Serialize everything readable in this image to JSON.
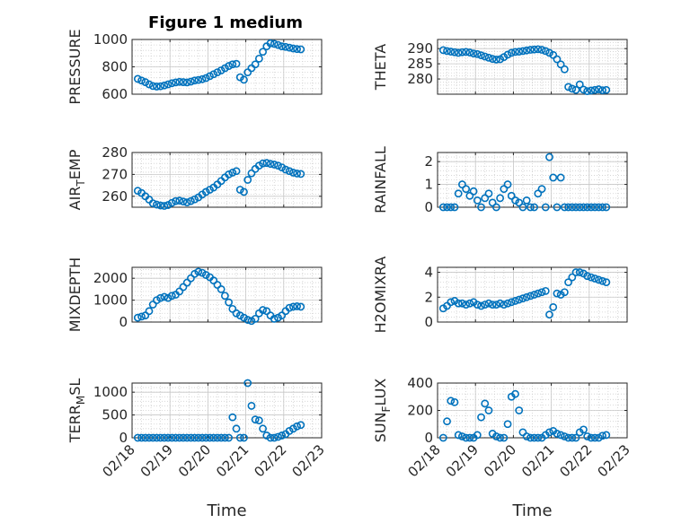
{
  "figure": {
    "title": "Figure 1 medium"
  },
  "chart_data": [
    {
      "type": "scatter",
      "ylabel": "PRESSURE",
      "title": "Figure 1 medium",
      "xlim": [
        "02/18",
        "02/23"
      ],
      "ylim": [
        600,
        1000
      ],
      "yticks": [
        600,
        800,
        1000
      ],
      "xticks": [
        "02/18",
        "02/19",
        "02/20",
        "02/21",
        "02/22",
        "02/23"
      ],
      "grid": true,
      "series": [
        {
          "x": [
            18.15,
            18.25,
            18.35,
            18.45,
            18.55,
            18.65,
            18.75,
            18.85,
            18.95,
            19.05,
            19.15,
            19.25,
            19.35,
            19.45,
            19.55,
            19.65,
            19.75,
            19.85,
            19.95,
            20.05,
            20.15,
            20.25,
            20.35,
            20.45,
            20.55,
            20.65,
            20.75,
            20.85,
            20.95,
            21.05,
            21.15,
            21.25,
            21.35,
            21.45,
            21.55,
            21.65,
            21.75,
            21.85,
            21.95,
            22.05,
            22.15,
            22.25,
            22.35,
            22.45
          ],
          "y": [
            712,
            700,
            688,
            672,
            660,
            656,
            658,
            664,
            672,
            680,
            686,
            690,
            688,
            686,
            692,
            700,
            704,
            710,
            718,
            732,
            746,
            760,
            774,
            790,
            806,
            818,
            822,
            724,
            706,
            760,
            790,
            818,
            860,
            910,
            950,
            972,
            968,
            960,
            950,
            946,
            940,
            934,
            930,
            928
          ]
        }
      ]
    },
    {
      "type": "scatter",
      "ylabel": "THETA",
      "xlim": [
        "02/18",
        "02/23"
      ],
      "ylim": [
        275,
        293
      ],
      "yticks": [
        280,
        285,
        290
      ],
      "xticks": [
        "02/18",
        "02/19",
        "02/20",
        "02/21",
        "02/22",
        "02/23"
      ],
      "grid": true,
      "series": [
        {
          "x": [
            18.15,
            18.25,
            18.35,
            18.45,
            18.55,
            18.65,
            18.75,
            18.85,
            18.95,
            19.05,
            19.15,
            19.25,
            19.35,
            19.45,
            19.55,
            19.65,
            19.75,
            19.85,
            19.95,
            20.05,
            20.15,
            20.25,
            20.35,
            20.45,
            20.55,
            20.65,
            20.75,
            20.85,
            20.95,
            21.05,
            21.15,
            21.25,
            21.35,
            21.45,
            21.55,
            21.65,
            21.75,
            21.85,
            21.95,
            22.05,
            22.15,
            22.25,
            22.35,
            22.45
          ],
          "y": [
            289.5,
            289.2,
            289.0,
            288.8,
            288.6,
            288.8,
            288.9,
            288.7,
            288.4,
            288.2,
            287.8,
            287.4,
            287.0,
            286.6,
            286.4,
            286.5,
            287.2,
            288.0,
            288.6,
            288.9,
            289.0,
            289.2,
            289.4,
            289.6,
            289.7,
            289.8,
            289.6,
            289.2,
            288.6,
            287.9,
            286.5,
            284.8,
            283.2,
            277.4,
            276.8,
            276.4,
            278.2,
            276.5,
            276.0,
            276.2,
            276.4,
            276.6,
            276.3,
            276.4
          ]
        }
      ]
    },
    {
      "type": "scatter",
      "ylabel": "AIR_TEMP",
      "xlim": [
        "02/18",
        "02/23"
      ],
      "ylim": [
        255,
        280
      ],
      "yticks": [
        260,
        270,
        280
      ],
      "xticks": [
        "02/18",
        "02/19",
        "02/20",
        "02/21",
        "02/22",
        "02/23"
      ],
      "grid": true,
      "series": [
        {
          "x": [
            18.15,
            18.25,
            18.35,
            18.45,
            18.55,
            18.65,
            18.75,
            18.85,
            18.95,
            19.05,
            19.15,
            19.25,
            19.35,
            19.45,
            19.55,
            19.65,
            19.75,
            19.85,
            19.95,
            20.05,
            20.15,
            20.25,
            20.35,
            20.45,
            20.55,
            20.65,
            20.75,
            20.85,
            20.95,
            21.05,
            21.15,
            21.25,
            21.35,
            21.45,
            21.55,
            21.65,
            21.75,
            21.85,
            21.95,
            22.05,
            22.15,
            22.25,
            22.35,
            22.45
          ],
          "y": [
            262.5,
            261.5,
            260.0,
            258.5,
            256.8,
            256.2,
            255.8,
            255.6,
            256.0,
            257.0,
            257.8,
            258.0,
            257.6,
            257.2,
            257.8,
            258.6,
            259.5,
            260.8,
            262.0,
            263.0,
            264.0,
            265.4,
            267.0,
            268.6,
            270.0,
            270.8,
            271.5,
            263.0,
            262.0,
            267.5,
            270.5,
            272.5,
            274.0,
            275.0,
            275.2,
            274.8,
            274.5,
            274.0,
            273.2,
            272.2,
            271.5,
            270.8,
            270.4,
            270.2
          ]
        }
      ]
    },
    {
      "type": "scatter",
      "ylabel": "RAINFALL",
      "xlim": [
        "02/18",
        "02/23"
      ],
      "ylim": [
        0,
        2.4
      ],
      "yticks": [
        0,
        1,
        2
      ],
      "xticks": [
        "02/18",
        "02/19",
        "02/20",
        "02/21",
        "02/22",
        "02/23"
      ],
      "grid": true,
      "series": [
        {
          "x": [
            18.15,
            18.25,
            18.35,
            18.45,
            18.55,
            18.65,
            18.75,
            18.85,
            18.95,
            19.05,
            19.15,
            19.25,
            19.35,
            19.45,
            19.55,
            19.65,
            19.75,
            19.85,
            19.95,
            20.05,
            20.15,
            20.25,
            20.35,
            20.45,
            20.55,
            20.65,
            20.75,
            20.85,
            20.95,
            21.05,
            21.15,
            21.25,
            21.35,
            21.45,
            21.55,
            21.65,
            21.75,
            21.85,
            21.95,
            22.05,
            22.15,
            22.25,
            22.35,
            22.45
          ],
          "y": [
            0,
            0,
            0,
            0,
            0.6,
            1.0,
            0.8,
            0.5,
            0.7,
            0.3,
            0,
            0.4,
            0.6,
            0.2,
            0,
            0.4,
            0.8,
            1.0,
            0.5,
            0.3,
            0.2,
            0,
            0.3,
            0,
            0,
            0.6,
            0.8,
            0,
            2.2,
            1.3,
            0,
            1.3,
            0,
            0,
            0,
            0,
            0,
            0,
            0,
            0,
            0,
            0,
            0,
            0
          ]
        }
      ]
    },
    {
      "type": "scatter",
      "ylabel": "MIXDEPTH",
      "xlim": [
        "02/18",
        "02/23"
      ],
      "ylim": [
        0,
        2500
      ],
      "yticks": [
        0,
        1000,
        2000
      ],
      "xticks": [
        "02/18",
        "02/19",
        "02/20",
        "02/21",
        "02/22",
        "02/23"
      ],
      "grid": true,
      "series": [
        {
          "x": [
            18.15,
            18.25,
            18.35,
            18.45,
            18.55,
            18.65,
            18.75,
            18.85,
            18.95,
            19.05,
            19.15,
            19.25,
            19.35,
            19.45,
            19.55,
            19.65,
            19.75,
            19.85,
            19.95,
            20.05,
            20.15,
            20.25,
            20.35,
            20.45,
            20.55,
            20.65,
            20.75,
            20.85,
            20.95,
            21.05,
            21.15,
            21.25,
            21.35,
            21.45,
            21.55,
            21.65,
            21.75,
            21.85,
            21.95,
            22.05,
            22.15,
            22.25,
            22.35,
            22.45
          ],
          "y": [
            200,
            250,
            300,
            500,
            800,
            1000,
            1100,
            1150,
            1100,
            1200,
            1250,
            1400,
            1600,
            1800,
            2000,
            2200,
            2300,
            2250,
            2150,
            2050,
            1900,
            1700,
            1500,
            1200,
            900,
            600,
            400,
            300,
            200,
            100,
            50,
            150,
            400,
            550,
            500,
            300,
            150,
            200,
            300,
            500,
            650,
            700,
            720,
            700
          ]
        }
      ]
    },
    {
      "type": "scatter",
      "ylabel": "H2OMIXRA",
      "xlim": [
        "02/18",
        "02/23"
      ],
      "ylim": [
        0,
        4.4
      ],
      "yticks": [
        0,
        2,
        4
      ],
      "xticks": [
        "02/18",
        "02/19",
        "02/20",
        "02/21",
        "02/22",
        "02/23"
      ],
      "grid": true,
      "series": [
        {
          "x": [
            18.15,
            18.25,
            18.35,
            18.45,
            18.55,
            18.65,
            18.75,
            18.85,
            18.95,
            19.05,
            19.15,
            19.25,
            19.35,
            19.45,
            19.55,
            19.65,
            19.75,
            19.85,
            19.95,
            20.05,
            20.15,
            20.25,
            20.35,
            20.45,
            20.55,
            20.65,
            20.75,
            20.85,
            20.95,
            21.05,
            21.15,
            21.25,
            21.35,
            21.45,
            21.55,
            21.65,
            21.75,
            21.85,
            21.95,
            22.05,
            22.15,
            22.25,
            22.35,
            22.45
          ],
          "y": [
            1.1,
            1.3,
            1.6,
            1.7,
            1.5,
            1.5,
            1.4,
            1.5,
            1.6,
            1.4,
            1.3,
            1.4,
            1.5,
            1.4,
            1.4,
            1.5,
            1.4,
            1.5,
            1.6,
            1.7,
            1.8,
            1.9,
            2.0,
            2.1,
            2.2,
            2.3,
            2.4,
            2.5,
            0.6,
            1.2,
            2.3,
            2.2,
            2.4,
            3.2,
            3.6,
            4.0,
            4.0,
            3.9,
            3.7,
            3.6,
            3.5,
            3.4,
            3.3,
            3.2
          ]
        }
      ]
    },
    {
      "type": "scatter",
      "ylabel": "TERR_MSL",
      "xlim": [
        "02/18",
        "02/23"
      ],
      "ylim": [
        0,
        1200
      ],
      "yticks": [
        0,
        500,
        1000
      ],
      "xticks": [
        "02/18",
        "02/19",
        "02/20",
        "02/21",
        "02/22",
        "02/23"
      ],
      "grid": true,
      "xlabel": "Time",
      "series": [
        {
          "x": [
            18.15,
            18.25,
            18.35,
            18.45,
            18.55,
            18.65,
            18.75,
            18.85,
            18.95,
            19.05,
            19.15,
            19.25,
            19.35,
            19.45,
            19.55,
            19.65,
            19.75,
            19.85,
            19.95,
            20.05,
            20.15,
            20.25,
            20.35,
            20.45,
            20.55,
            20.65,
            20.75,
            20.85,
            20.95,
            21.05,
            21.15,
            21.25,
            21.35,
            21.45,
            21.55,
            21.65,
            21.75,
            21.85,
            21.95,
            22.05,
            22.15,
            22.25,
            22.35,
            22.45
          ],
          "y": [
            0,
            0,
            0,
            0,
            0,
            0,
            0,
            0,
            0,
            0,
            0,
            0,
            0,
            0,
            0,
            0,
            0,
            0,
            0,
            0,
            0,
            0,
            0,
            0,
            0,
            450,
            200,
            0,
            0,
            1200,
            700,
            400,
            380,
            200,
            50,
            0,
            0,
            20,
            50,
            80,
            150,
            200,
            250,
            280
          ]
        }
      ]
    },
    {
      "type": "scatter",
      "ylabel": "SUN_FLUX",
      "xlim": [
        "02/18",
        "02/23"
      ],
      "ylim": [
        0,
        400
      ],
      "yticks": [
        0,
        200,
        400
      ],
      "xticks": [
        "02/18",
        "02/19",
        "02/20",
        "02/21",
        "02/22",
        "02/23"
      ],
      "grid": true,
      "xlabel": "Time",
      "series": [
        {
          "x": [
            18.15,
            18.25,
            18.35,
            18.45,
            18.55,
            18.65,
            18.75,
            18.85,
            18.95,
            19.05,
            19.15,
            19.25,
            19.35,
            19.45,
            19.55,
            19.65,
            19.75,
            19.85,
            19.95,
            20.05,
            20.15,
            20.25,
            20.35,
            20.45,
            20.55,
            20.65,
            20.75,
            20.85,
            20.95,
            21.05,
            21.15,
            21.25,
            21.35,
            21.45,
            21.55,
            21.65,
            21.75,
            21.85,
            21.95,
            22.05,
            22.15,
            22.25,
            22.35,
            22.45
          ],
          "y": [
            0,
            120,
            270,
            260,
            20,
            10,
            0,
            0,
            0,
            20,
            150,
            250,
            200,
            30,
            10,
            0,
            0,
            100,
            300,
            320,
            200,
            40,
            10,
            0,
            0,
            0,
            0,
            20,
            40,
            50,
            30,
            20,
            10,
            0,
            0,
            0,
            40,
            60,
            10,
            0,
            0,
            0,
            15,
            20
          ]
        }
      ]
    }
  ]
}
